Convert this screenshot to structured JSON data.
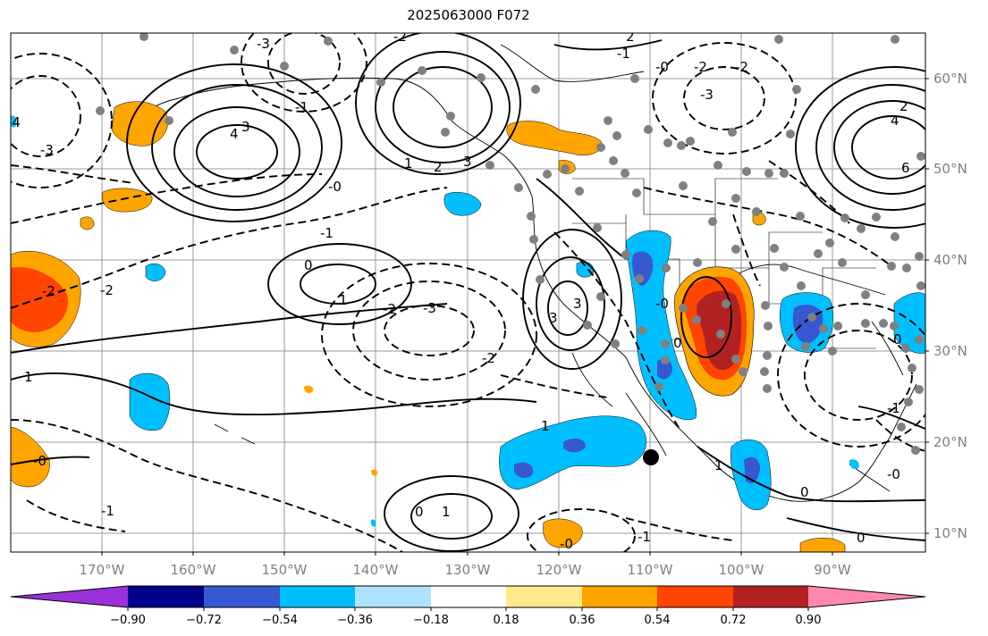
{
  "title": "2025063000 F072",
  "lon_labels": [
    "170°W",
    "160°W",
    "150°W",
    "140°W",
    "130°W",
    "120°W",
    "110°W",
    "100°W",
    "90°W"
  ],
  "lat_labels": [
    "60°N",
    "50°N",
    "40°N",
    "30°N",
    "20°N",
    "10°N"
  ],
  "colorbar": {
    "ticks": [
      "−0.90",
      "−0.72",
      "−0.54",
      "−0.36",
      "−0.18",
      "0.18",
      "0.36",
      "0.54",
      "0.72",
      "0.90"
    ],
    "colors": [
      "#9b30d9",
      "#00008b",
      "#3658d0",
      "#00bfff",
      "#aee3ff",
      "#ffffff",
      "#ffe98a",
      "#ffa500",
      "#ff4500",
      "#b22222",
      "#ff88b0"
    ]
  },
  "contour_labels": [
    "-3",
    "-2",
    "-1",
    "0",
    "1",
    "2",
    "3",
    "4",
    "6"
  ],
  "fill_colors": {
    "light_blue": "#aee3ff",
    "blue": "#00bfff",
    "royal_blue": "#3658d0",
    "yellow": "#ffe98a",
    "orange": "#ffa500",
    "red_orange": "#ff4500",
    "dark_red": "#b22222"
  },
  "marker_color": "#808080"
}
